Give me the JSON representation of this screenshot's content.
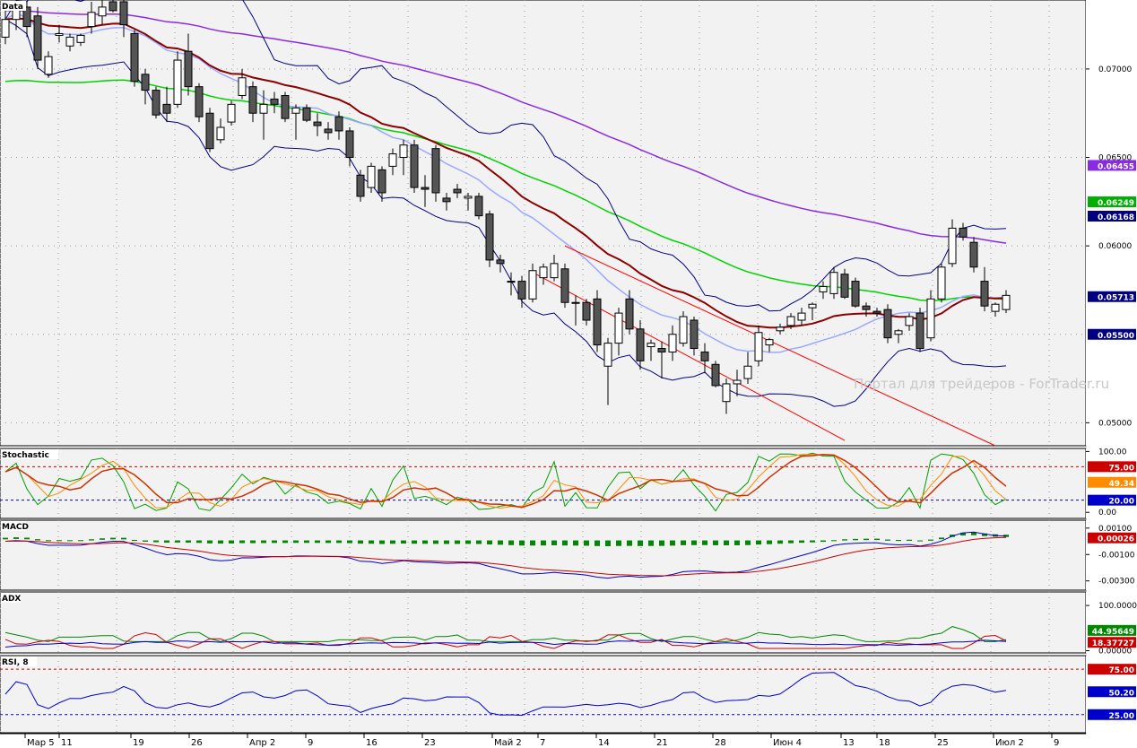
{
  "chart_data": {
    "type": "candlestick",
    "watermark": "Портал для трейдеров - ForTrader.ru",
    "x_labels": [
      "Мар 5",
      "11",
      "19",
      "26",
      "Апр 2",
      "9",
      "16",
      "23",
      "Май 2",
      "7",
      "14",
      "21",
      "28",
      "Июн 4",
      "13",
      "18",
      "25",
      "Июл 2",
      "9"
    ],
    "colors": {
      "ma_fast": "#9aa8ff",
      "ma_mid": "#8b0000",
      "ma_green": "#00d400",
      "ma_purple": "#8a2be2",
      "bands": "#000080",
      "channel": "#ff0000",
      "up_candle": "#ffffff",
      "down_candle": "#555555"
    },
    "price": {
      "title": "Data",
      "yticks": [
        "0.07000",
        "0.06500",
        "0.06000",
        "0.05000"
      ],
      "ylim": [
        0.0487,
        0.0739
      ],
      "last_values": [
        {
          "label": "0.06455",
          "color": "#8a2be2"
        },
        {
          "label": "0.06249",
          "color": "#00b000"
        },
        {
          "label": "0.06168",
          "color": "#000080"
        },
        {
          "label": "0.05713",
          "color": "#000080"
        },
        {
          "label": "0.05500",
          "color": "#000080"
        }
      ],
      "candles": [
        {
          "o": 0.0718,
          "h": 0.0735,
          "l": 0.0714,
          "c": 0.0728
        },
        {
          "o": 0.0728,
          "h": 0.074,
          "l": 0.0722,
          "c": 0.0735
        },
        {
          "o": 0.0735,
          "h": 0.0738,
          "l": 0.0718,
          "c": 0.0724
        },
        {
          "o": 0.073,
          "h": 0.0735,
          "l": 0.07,
          "c": 0.0705
        },
        {
          "o": 0.0697,
          "h": 0.071,
          "l": 0.0695,
          "c": 0.0707
        },
        {
          "o": 0.0719,
          "h": 0.0725,
          "l": 0.0715,
          "c": 0.072
        },
        {
          "o": 0.0713,
          "h": 0.072,
          "l": 0.071,
          "c": 0.0718
        },
        {
          "o": 0.0715,
          "h": 0.072,
          "l": 0.0713,
          "c": 0.0719
        },
        {
          "o": 0.0724,
          "h": 0.0738,
          "l": 0.072,
          "c": 0.0732
        },
        {
          "o": 0.073,
          "h": 0.074,
          "l": 0.0725,
          "c": 0.0735
        },
        {
          "o": 0.0738,
          "h": 0.074,
          "l": 0.0732,
          "c": 0.0733
        },
        {
          "o": 0.0738,
          "h": 0.074,
          "l": 0.0718,
          "c": 0.0725
        },
        {
          "o": 0.072,
          "h": 0.0722,
          "l": 0.069,
          "c": 0.0693
        },
        {
          "o": 0.0697,
          "h": 0.07,
          "l": 0.068,
          "c": 0.0688
        },
        {
          "o": 0.0688,
          "h": 0.069,
          "l": 0.0672,
          "c": 0.0674
        },
        {
          "o": 0.068,
          "h": 0.069,
          "l": 0.067,
          "c": 0.0675
        },
        {
          "o": 0.068,
          "h": 0.071,
          "l": 0.0678,
          "c": 0.0705
        },
        {
          "o": 0.071,
          "h": 0.072,
          "l": 0.0685,
          "c": 0.069
        },
        {
          "o": 0.069,
          "h": 0.0692,
          "l": 0.067,
          "c": 0.0673
        },
        {
          "o": 0.0675,
          "h": 0.0678,
          "l": 0.0653,
          "c": 0.0655
        },
        {
          "o": 0.066,
          "h": 0.0672,
          "l": 0.0658,
          "c": 0.0667
        },
        {
          "o": 0.067,
          "h": 0.0682,
          "l": 0.0668,
          "c": 0.068
        },
        {
          "o": 0.0685,
          "h": 0.07,
          "l": 0.0683,
          "c": 0.0695
        },
        {
          "o": 0.069,
          "h": 0.0693,
          "l": 0.067,
          "c": 0.0675
        },
        {
          "o": 0.0675,
          "h": 0.0688,
          "l": 0.066,
          "c": 0.068
        },
        {
          "o": 0.0683,
          "h": 0.0687,
          "l": 0.0675,
          "c": 0.068
        },
        {
          "o": 0.0685,
          "h": 0.0687,
          "l": 0.067,
          "c": 0.0672
        },
        {
          "o": 0.0675,
          "h": 0.068,
          "l": 0.066,
          "c": 0.0678
        },
        {
          "o": 0.0678,
          "h": 0.068,
          "l": 0.067,
          "c": 0.0671
        },
        {
          "o": 0.067,
          "h": 0.0675,
          "l": 0.0662,
          "c": 0.0668
        },
        {
          "o": 0.0666,
          "h": 0.067,
          "l": 0.066,
          "c": 0.0664
        },
        {
          "o": 0.0673,
          "h": 0.0676,
          "l": 0.066,
          "c": 0.0665
        },
        {
          "o": 0.0665,
          "h": 0.0667,
          "l": 0.0645,
          "c": 0.065
        },
        {
          "o": 0.064,
          "h": 0.0643,
          "l": 0.0625,
          "c": 0.0628
        },
        {
          "o": 0.0633,
          "h": 0.0647,
          "l": 0.063,
          "c": 0.0645
        },
        {
          "o": 0.0643,
          "h": 0.0645,
          "l": 0.0625,
          "c": 0.063
        },
        {
          "o": 0.0645,
          "h": 0.0655,
          "l": 0.064,
          "c": 0.0652
        },
        {
          "o": 0.065,
          "h": 0.066,
          "l": 0.064,
          "c": 0.0657
        },
        {
          "o": 0.0657,
          "h": 0.066,
          "l": 0.063,
          "c": 0.0633
        },
        {
          "o": 0.0633,
          "h": 0.064,
          "l": 0.0622,
          "c": 0.0632
        },
        {
          "o": 0.0655,
          "h": 0.0657,
          "l": 0.0625,
          "c": 0.063
        },
        {
          "o": 0.0627,
          "h": 0.063,
          "l": 0.062,
          "c": 0.0625
        },
        {
          "o": 0.0632,
          "h": 0.0635,
          "l": 0.0627,
          "c": 0.063
        },
        {
          "o": 0.0627,
          "h": 0.063,
          "l": 0.062,
          "c": 0.0628
        },
        {
          "o": 0.0628,
          "h": 0.063,
          "l": 0.0615,
          "c": 0.0617
        },
        {
          "o": 0.0618,
          "h": 0.062,
          "l": 0.0588,
          "c": 0.0592
        },
        {
          "o": 0.0592,
          "h": 0.0595,
          "l": 0.0585,
          "c": 0.059
        },
        {
          "o": 0.058,
          "h": 0.0585,
          "l": 0.0572,
          "c": 0.058
        },
        {
          "o": 0.058,
          "h": 0.0583,
          "l": 0.0565,
          "c": 0.057
        },
        {
          "o": 0.057,
          "h": 0.059,
          "l": 0.0568,
          "c": 0.0586
        },
        {
          "o": 0.0582,
          "h": 0.059,
          "l": 0.0578,
          "c": 0.0588
        },
        {
          "o": 0.0582,
          "h": 0.0595,
          "l": 0.058,
          "c": 0.059
        },
        {
          "o": 0.0587,
          "h": 0.059,
          "l": 0.0565,
          "c": 0.0568
        },
        {
          "o": 0.0568,
          "h": 0.0572,
          "l": 0.0555,
          "c": 0.0568
        },
        {
          "o": 0.0568,
          "h": 0.057,
          "l": 0.0555,
          "c": 0.0558
        },
        {
          "o": 0.057,
          "h": 0.0575,
          "l": 0.054,
          "c": 0.0544
        },
        {
          "o": 0.0532,
          "h": 0.0548,
          "l": 0.051,
          "c": 0.0545
        },
        {
          "o": 0.0545,
          "h": 0.0565,
          "l": 0.0538,
          "c": 0.0562
        },
        {
          "o": 0.057,
          "h": 0.0575,
          "l": 0.055,
          "c": 0.0553
        },
        {
          "o": 0.0553,
          "h": 0.0558,
          "l": 0.053,
          "c": 0.0535
        },
        {
          "o": 0.0543,
          "h": 0.0547,
          "l": 0.0535,
          "c": 0.0545
        },
        {
          "o": 0.0542,
          "h": 0.0546,
          "l": 0.0525,
          "c": 0.054
        },
        {
          "o": 0.054,
          "h": 0.0555,
          "l": 0.0535,
          "c": 0.055
        },
        {
          "o": 0.0545,
          "h": 0.0563,
          "l": 0.0543,
          "c": 0.056
        },
        {
          "o": 0.0558,
          "h": 0.056,
          "l": 0.0538,
          "c": 0.0542
        },
        {
          "o": 0.054,
          "h": 0.0545,
          "l": 0.0528,
          "c": 0.0535
        },
        {
          "o": 0.0533,
          "h": 0.0535,
          "l": 0.052,
          "c": 0.0521
        },
        {
          "o": 0.0512,
          "h": 0.0525,
          "l": 0.0505,
          "c": 0.0522
        },
        {
          "o": 0.0522,
          "h": 0.053,
          "l": 0.0515,
          "c": 0.0524
        },
        {
          "o": 0.0525,
          "h": 0.054,
          "l": 0.0522,
          "c": 0.0532
        },
        {
          "o": 0.0535,
          "h": 0.0555,
          "l": 0.0532,
          "c": 0.0551
        },
        {
          "o": 0.0544,
          "h": 0.0548,
          "l": 0.054,
          "c": 0.0547
        },
        {
          "o": 0.0552,
          "h": 0.0556,
          "l": 0.055,
          "c": 0.0554
        },
        {
          "o": 0.0555,
          "h": 0.0562,
          "l": 0.0553,
          "c": 0.056
        },
        {
          "o": 0.0558,
          "h": 0.0565,
          "l": 0.0555,
          "c": 0.0562
        },
        {
          "o": 0.0565,
          "h": 0.0568,
          "l": 0.0558,
          "c": 0.0567
        },
        {
          "o": 0.0574,
          "h": 0.058,
          "l": 0.057,
          "c": 0.0577
        },
        {
          "o": 0.0573,
          "h": 0.0588,
          "l": 0.057,
          "c": 0.0585
        },
        {
          "o": 0.0584,
          "h": 0.0587,
          "l": 0.057,
          "c": 0.0571
        },
        {
          "o": 0.058,
          "h": 0.0582,
          "l": 0.0565,
          "c": 0.0566
        },
        {
          "o": 0.0566,
          "h": 0.0568,
          "l": 0.056,
          "c": 0.0564
        },
        {
          "o": 0.0563,
          "h": 0.0565,
          "l": 0.056,
          "c": 0.0562
        },
        {
          "o": 0.0564,
          "h": 0.0567,
          "l": 0.0545,
          "c": 0.0548
        },
        {
          "o": 0.055,
          "h": 0.0553,
          "l": 0.0545,
          "c": 0.0552
        },
        {
          "o": 0.0555,
          "h": 0.0562,
          "l": 0.0552,
          "c": 0.056
        },
        {
          "o": 0.0562,
          "h": 0.0565,
          "l": 0.054,
          "c": 0.0542
        },
        {
          "o": 0.0548,
          "h": 0.0575,
          "l": 0.0546,
          "c": 0.057
        },
        {
          "o": 0.057,
          "h": 0.059,
          "l": 0.0568,
          "c": 0.0588
        },
        {
          "o": 0.059,
          "h": 0.0615,
          "l": 0.0588,
          "c": 0.061
        },
        {
          "o": 0.061,
          "h": 0.0613,
          "l": 0.0603,
          "c": 0.0605
        },
        {
          "o": 0.0602,
          "h": 0.0605,
          "l": 0.0585,
          "c": 0.0588
        },
        {
          "o": 0.058,
          "h": 0.0588,
          "l": 0.0563,
          "c": 0.0566
        },
        {
          "o": 0.0563,
          "h": 0.0568,
          "l": 0.056,
          "c": 0.0567
        },
        {
          "o": 0.0564,
          "h": 0.0575,
          "l": 0.0562,
          "c": 0.0572
        }
      ]
    },
    "stochastic": {
      "title": "Stochastic",
      "yticks": [
        "100.00",
        "0.00"
      ],
      "levels": [
        75,
        20
      ],
      "ylim": [
        -10,
        105
      ],
      "last_values": [
        {
          "label": "75.00",
          "color": "#cc0000"
        },
        {
          "label": "49.34",
          "color": "#ff8c00"
        },
        {
          "label": "20.00",
          "color": "#0000cc"
        }
      ]
    },
    "macd": {
      "title": "MACD",
      "yticks": [
        "0.00100",
        "-0.00100",
        "-0.00300"
      ],
      "ylim": [
        -0.0037,
        0.0016
      ],
      "last_values": [
        {
          "label": "0.00026",
          "color": "#cc0000"
        }
      ]
    },
    "adx": {
      "title": "ADX",
      "yticks": [
        "100.00000",
        "0.00000"
      ],
      "ylim": [
        -5,
        130
      ],
      "last_values": [
        {
          "label": "44.95649",
          "color": "#008800"
        },
        {
          "label": "18.37727",
          "color": "#cc0000"
        }
      ]
    },
    "rsi": {
      "title": "RSI, 8",
      "yticks": [],
      "levels": [
        75,
        25
      ],
      "ylim": [
        5,
        90
      ],
      "last_values": [
        {
          "label": "75.00",
          "color": "#cc0000"
        },
        {
          "label": "50.20",
          "color": "#0000cc"
        },
        {
          "label": "25.00",
          "color": "#0000cc"
        }
      ]
    }
  }
}
